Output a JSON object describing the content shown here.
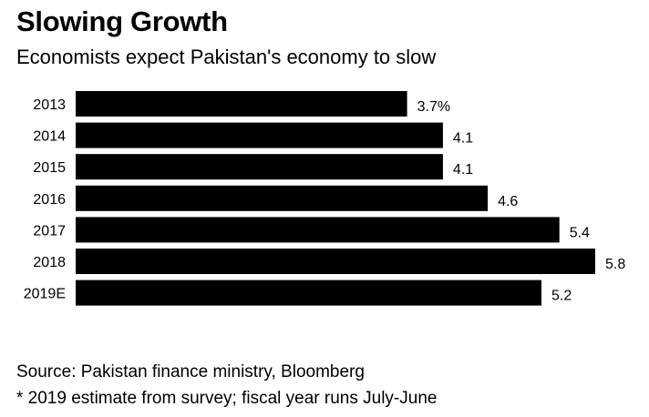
{
  "header": {
    "title": "Slowing Growth",
    "subtitle": "Economists expect Pakistan's economy to slow"
  },
  "chart_data": {
    "type": "bar",
    "orientation": "horizontal",
    "title": "Slowing Growth",
    "subtitle": "Economists expect Pakistan's economy to slow",
    "categories": [
      "2013",
      "2014",
      "2015",
      "2016",
      "2017",
      "2018",
      "2019E"
    ],
    "values": [
      3.7,
      4.1,
      4.1,
      4.6,
      5.4,
      5.8,
      5.2
    ],
    "value_labels": [
      "3.7%",
      "4.1",
      "4.1",
      "4.6",
      "5.4",
      "5.8",
      "5.2"
    ],
    "xlabel": "",
    "ylabel": "",
    "xlim": [
      0,
      5.8
    ],
    "grid": false,
    "bar_color": "#000000"
  },
  "footer": {
    "source": "Source: Pakistan finance ministry, Bloomberg",
    "note": "* 2019 estimate from survey; fiscal year runs July-June"
  }
}
